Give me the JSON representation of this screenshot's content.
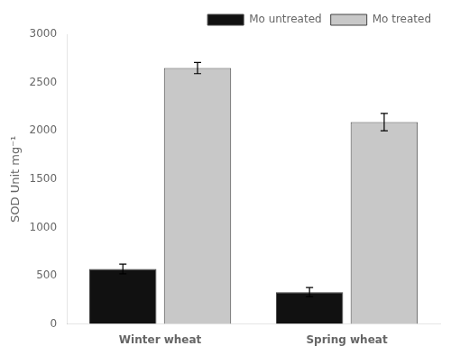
{
  "chart_data": {
    "type": "bar",
    "categories": [
      "Winter wheat",
      "Spring wheat"
    ],
    "series": [
      {
        "name": "Mo untreated",
        "color": "#111111",
        "values": [
          570,
          330
        ],
        "errors": [
          50,
          48
        ]
      },
      {
        "name": "Mo treated",
        "color": "#c8c8c8",
        "values": [
          2650,
          2090
        ],
        "errors": [
          58,
          90
        ]
      }
    ],
    "ylabel": "SOD Unit mg⁻¹",
    "ylim": [
      0,
      3000
    ],
    "yticks": [
      0,
      500,
      1000,
      1500,
      2000,
      2500,
      3000
    ],
    "grid": false,
    "legend": "upper right"
  }
}
